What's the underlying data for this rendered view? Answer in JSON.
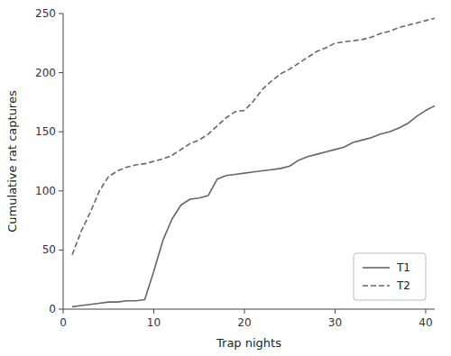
{
  "chart_data": {
    "type": "line",
    "xlabel": "Trap nights",
    "ylabel": "Cumulative rat captures",
    "x": [
      1,
      2,
      3,
      4,
      5,
      6,
      7,
      8,
      9,
      10,
      11,
      12,
      13,
      14,
      15,
      16,
      17,
      18,
      19,
      20,
      21,
      22,
      23,
      24,
      25,
      26,
      27,
      28,
      29,
      30,
      31,
      32,
      33,
      34,
      35,
      36,
      37,
      38,
      39,
      40,
      41
    ],
    "series": [
      {
        "name": "T1",
        "color": "#666666",
        "line_style": "solid",
        "values": [
          2,
          3,
          4,
          5,
          6,
          6,
          7,
          7,
          8,
          32,
          58,
          76,
          88,
          93,
          94,
          96,
          110,
          113,
          114,
          115,
          116,
          117,
          118,
          119,
          121,
          126,
          129,
          131,
          133,
          135,
          137,
          141,
          143,
          145,
          148,
          150,
          153,
          157,
          163,
          168,
          172
        ]
      },
      {
        "name": "T2",
        "color": "#666666",
        "line_style": "dashed",
        "values": [
          46,
          66,
          82,
          100,
          112,
          117,
          120,
          122,
          123,
          125,
          127,
          130,
          135,
          140,
          143,
          148,
          155,
          162,
          167,
          168,
          176,
          186,
          193,
          199,
          203,
          208,
          213,
          218,
          221,
          225,
          226,
          227,
          228,
          230,
          233,
          235,
          238,
          240,
          242,
          244,
          246
        ]
      }
    ],
    "xlim": [
      0,
      41
    ],
    "ylim": [
      0,
      250
    ],
    "xticks": [
      0,
      10,
      20,
      30,
      40
    ],
    "yticks": [
      0,
      50,
      100,
      150,
      200,
      250
    ],
    "legend": "lower right",
    "grid": false
  }
}
